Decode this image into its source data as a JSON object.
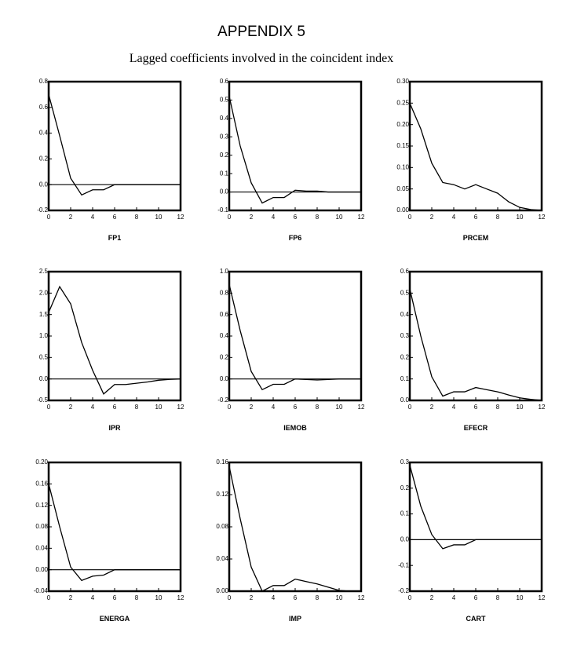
{
  "title": "APPENDIX 5",
  "subtitle": "Lagged coefficients involved in the coincident index",
  "chart_data": [
    {
      "type": "line",
      "xlabel": "FP1",
      "color": "#000000",
      "zero_line": true,
      "x": [
        0,
        1,
        2,
        3,
        4,
        5,
        6,
        7,
        8,
        9,
        10,
        11,
        12
      ],
      "values": [
        0.7,
        0.38,
        0.05,
        -0.08,
        -0.04,
        -0.04,
        0.0,
        0,
        0,
        0,
        0,
        0,
        0
      ],
      "xlim": [
        0,
        12
      ],
      "xticks": [
        0,
        2,
        4,
        6,
        8,
        10,
        12
      ],
      "ylim": [
        -0.2,
        0.8
      ],
      "yticks": [
        0.8,
        0.6,
        0.4,
        0.2,
        {
          "value": 0,
          "label": "0.0"
        },
        -0.2
      ]
    },
    {
      "type": "line",
      "xlabel": "FP6",
      "color": "#000000",
      "zero_line": true,
      "x": [
        0,
        1,
        2,
        3,
        4,
        5,
        6,
        7,
        8,
        9,
        10,
        11,
        12
      ],
      "values": [
        0.52,
        0.25,
        0.05,
        -0.06,
        -0.03,
        -0.03,
        0.01,
        0.005,
        0.005,
        0,
        0,
        0,
        0
      ],
      "xlim": [
        0,
        12
      ],
      "xticks": [
        0,
        2,
        4,
        6,
        8,
        10,
        12
      ],
      "ylim": [
        -0.1,
        0.6
      ],
      "yticks": [
        0.6,
        0.5,
        0.4,
        0.3,
        0.2,
        0.1,
        {
          "value": 0,
          "label": "0.0"
        },
        -0.1
      ]
    },
    {
      "type": "line",
      "xlabel": "PRCEM",
      "color": "#000000",
      "zero_line": true,
      "x": [
        0,
        1,
        2,
        3,
        4,
        5,
        6,
        7,
        8,
        9,
        10,
        11,
        12
      ],
      "values": [
        0.25,
        0.19,
        0.11,
        0.065,
        0.06,
        0.05,
        0.06,
        0.05,
        0.04,
        0.02,
        0.007,
        0.002,
        0
      ],
      "xlim": [
        0,
        12
      ],
      "xticks": [
        0,
        2,
        4,
        6,
        8,
        10,
        12
      ],
      "ylim": [
        0,
        0.3
      ],
      "yticks": [
        {
          "value": 0.3,
          "label": "0.30"
        },
        0.25,
        {
          "value": 0.2,
          "label": "0.20"
        },
        0.15,
        {
          "value": 0.1,
          "label": "0.10"
        },
        0.05,
        {
          "value": 0,
          "label": "0.00"
        }
      ]
    },
    {
      "type": "line",
      "xlabel": "IPR",
      "color": "#000000",
      "zero_line": true,
      "x": [
        0,
        1,
        2,
        3,
        4,
        5,
        6,
        7,
        8,
        9,
        10,
        11,
        12
      ],
      "values": [
        1.55,
        2.15,
        1.75,
        0.85,
        0.2,
        -0.35,
        -0.13,
        -0.13,
        -0.1,
        -0.07,
        -0.03,
        -0.01,
        0
      ],
      "xlim": [
        0,
        12
      ],
      "xticks": [
        0,
        2,
        4,
        6,
        8,
        10,
        12
      ],
      "ylim": [
        -0.5,
        2.5
      ],
      "yticks": [
        2.5,
        {
          "value": 2,
          "label": "2.0"
        },
        1.5,
        {
          "value": 1,
          "label": "1.0"
        },
        0.5,
        {
          "value": 0,
          "label": "0.0"
        },
        -0.5
      ]
    },
    {
      "type": "line",
      "xlabel": "IEMOB",
      "color": "#000000",
      "zero_line": true,
      "x": [
        0,
        1,
        2,
        3,
        4,
        5,
        6,
        7,
        8,
        9,
        10,
        11,
        12
      ],
      "values": [
        0.88,
        0.45,
        0.07,
        -0.1,
        -0.05,
        -0.05,
        0,
        -0.005,
        -0.01,
        -0.005,
        0,
        0,
        0
      ],
      "xlim": [
        0,
        12
      ],
      "xticks": [
        0,
        2,
        4,
        6,
        8,
        10,
        12
      ],
      "ylim": [
        -0.2,
        1.0
      ],
      "yticks": [
        {
          "value": 1,
          "label": "1.0"
        },
        0.8,
        0.6,
        0.4,
        0.2,
        {
          "value": 0,
          "label": "0.0"
        },
        -0.2
      ]
    },
    {
      "type": "line",
      "xlabel": "EFECR",
      "color": "#000000",
      "zero_line": true,
      "x": [
        0,
        1,
        2,
        3,
        4,
        5,
        6,
        7,
        8,
        9,
        10,
        11,
        12
      ],
      "values": [
        0.52,
        0.3,
        0.11,
        0.02,
        0.04,
        0.04,
        0.06,
        0.05,
        0.04,
        0.025,
        0.012,
        0.005,
        0
      ],
      "xlim": [
        0,
        12
      ],
      "xticks": [
        0,
        2,
        4,
        6,
        8,
        10,
        12
      ],
      "ylim": [
        0,
        0.6
      ],
      "yticks": [
        0.6,
        0.5,
        0.4,
        0.3,
        0.2,
        0.1,
        {
          "value": 0,
          "label": "0.0"
        }
      ]
    },
    {
      "type": "line",
      "xlabel": "ENERGA",
      "color": "#000000",
      "zero_line": true,
      "x": [
        0,
        1,
        2,
        3,
        4,
        5,
        6,
        7,
        8,
        9,
        10,
        11,
        12
      ],
      "values": [
        0.16,
        0.08,
        0.005,
        -0.02,
        -0.012,
        -0.01,
        0,
        0,
        0,
        0,
        0,
        0,
        0
      ],
      "xlim": [
        0,
        12
      ],
      "xticks": [
        0,
        2,
        4,
        6,
        8,
        10,
        12
      ],
      "ylim": [
        -0.04,
        0.2
      ],
      "yticks": [
        {
          "value": 0.2,
          "label": "0.20"
        },
        0.16,
        0.12,
        0.08,
        0.04,
        {
          "value": 0,
          "label": "0.00"
        },
        -0.04
      ]
    },
    {
      "type": "line",
      "xlabel": "IMP",
      "color": "#000000",
      "zero_line": true,
      "x": [
        0,
        1,
        2,
        3,
        4,
        5,
        6,
        7,
        8,
        9,
        10,
        11,
        12
      ],
      "values": [
        0.155,
        0.09,
        0.03,
        0,
        0.007,
        0.007,
        0.015,
        0.012,
        0.009,
        0.005,
        0.001,
        0,
        0
      ],
      "xlim": [
        0,
        12
      ],
      "xticks": [
        0,
        2,
        4,
        6,
        8,
        10,
        12
      ],
      "ylim": [
        0,
        0.16
      ],
      "yticks": [
        0.16,
        0.12,
        0.08,
        0.04,
        {
          "value": 0,
          "label": "0.00"
        }
      ]
    },
    {
      "type": "line",
      "xlabel": "CART",
      "color": "#000000",
      "zero_line": true,
      "x": [
        0,
        1,
        2,
        3,
        4,
        5,
        6,
        7,
        8,
        9,
        10,
        11,
        12
      ],
      "values": [
        0.29,
        0.13,
        0.02,
        -0.035,
        -0.02,
        -0.02,
        0,
        0,
        0,
        0,
        0,
        0,
        0
      ],
      "xlim": [
        0,
        12
      ],
      "xticks": [
        0,
        2,
        4,
        6,
        8,
        10,
        12
      ],
      "ylim": [
        -0.2,
        0.3
      ],
      "yticks": [
        0.3,
        0.2,
        0.1,
        {
          "value": 0,
          "label": "0.0"
        },
        -0.1,
        -0.2
      ]
    }
  ]
}
